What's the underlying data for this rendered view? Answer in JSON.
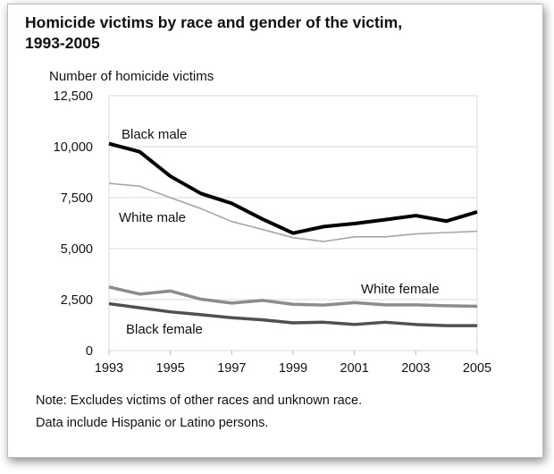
{
  "chart_data": {
    "type": "line",
    "title": "Homicide victims by race and gender of the victim, 1993-2005",
    "title_lines": [
      "Homicide victims by race and gender of the victim,",
      "1993-2005"
    ],
    "ylabel": "Number of homicide victims",
    "xlabel": "",
    "ylim": [
      0,
      12500
    ],
    "yticks": [
      0,
      2500,
      5000,
      7500,
      10000,
      12500
    ],
    "ytick_labels": [
      "0",
      "2,500",
      "5,000",
      "7,500",
      "10,000",
      "12,500"
    ],
    "xticks": [
      1993,
      1995,
      1997,
      1999,
      2001,
      2003,
      2005
    ],
    "xtick_labels": [
      "1993",
      "1995",
      "1997",
      "1999",
      "2001",
      "2003",
      "2005"
    ],
    "grid": true,
    "x": [
      1993,
      1994,
      1995,
      1996,
      1997,
      1998,
      1999,
      2000,
      2001,
      2002,
      2003,
      2004,
      2005
    ],
    "series": [
      {
        "name": "Black male",
        "color": "#000000",
        "values": [
          10150,
          9750,
          8550,
          7700,
          7220,
          6450,
          5760,
          6080,
          6230,
          6420,
          6620,
          6350,
          6800
        ]
      },
      {
        "name": "White male",
        "color": "#a6a6a6",
        "values": [
          8200,
          8060,
          7500,
          6960,
          6330,
          5940,
          5540,
          5350,
          5580,
          5580,
          5720,
          5790,
          5850
        ]
      },
      {
        "name": "White female",
        "color": "#8c8c8c",
        "values": [
          3120,
          2770,
          2920,
          2520,
          2330,
          2460,
          2270,
          2230,
          2350,
          2240,
          2240,
          2200,
          2170
        ]
      },
      {
        "name": "Black female",
        "color": "#505050",
        "values": [
          2300,
          2100,
          1900,
          1760,
          1610,
          1510,
          1360,
          1390,
          1280,
          1390,
          1280,
          1220,
          1220
        ]
      }
    ],
    "notes": [
      "Note: Excludes victims of other races and unknown race.",
      "Data include Hispanic or Latino persons."
    ]
  }
}
